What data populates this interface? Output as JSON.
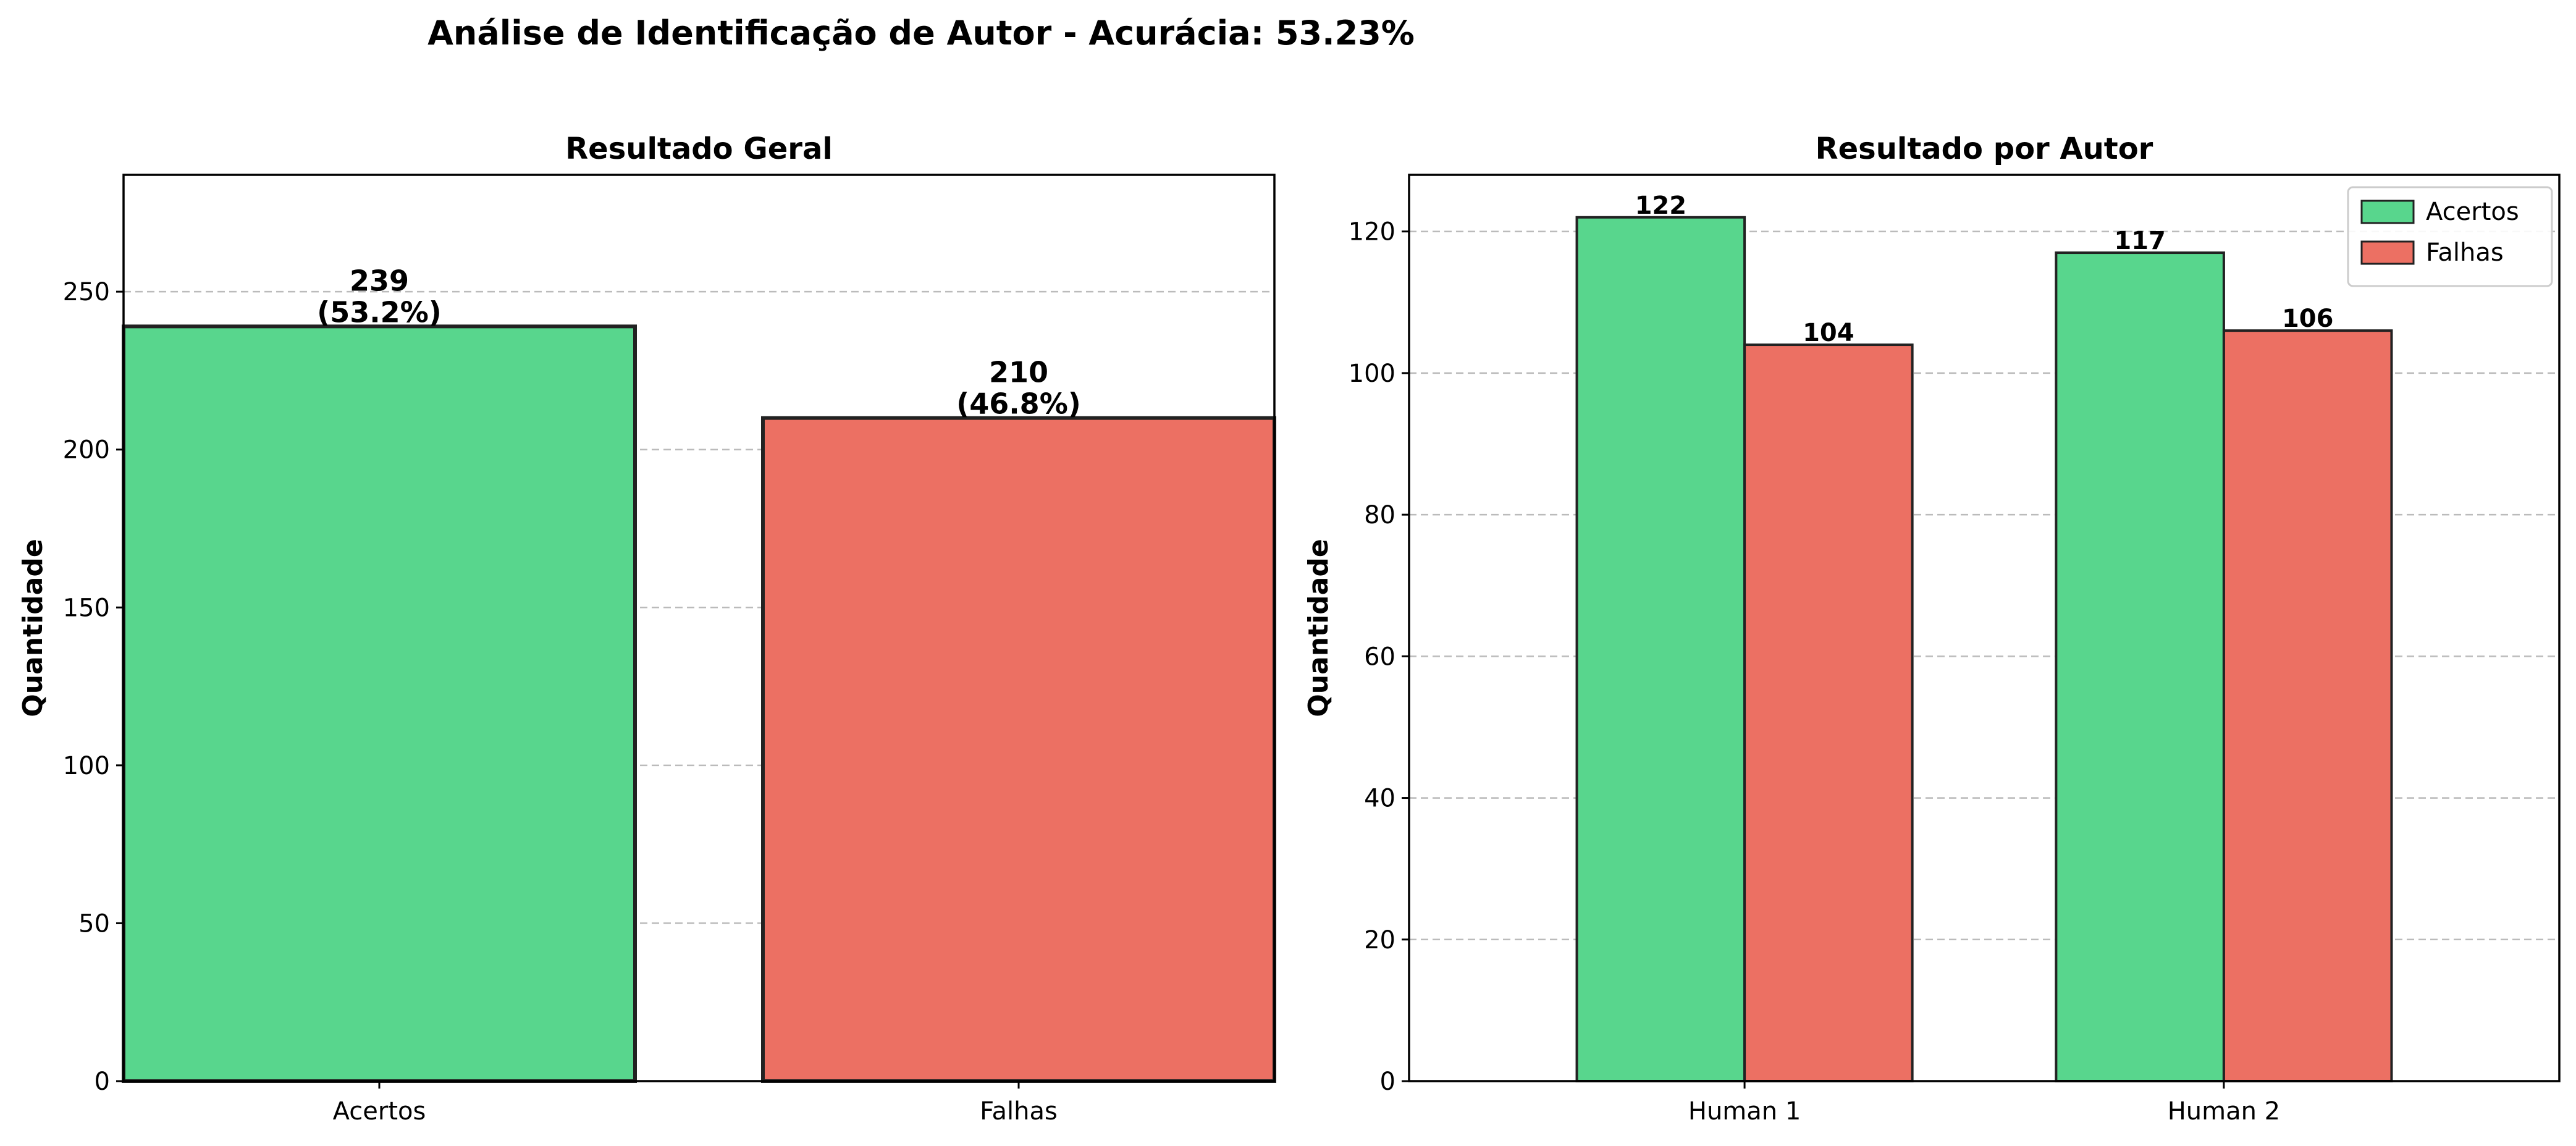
{
  "figure": {
    "title": "Análise de Identificação de Autor - Acurácia: 53.23%"
  },
  "colors": {
    "acertos": "#58d68d",
    "falhas": "#ec7063",
    "edge": "#222222",
    "grid": "#bbbbbb"
  },
  "chart_data": [
    {
      "type": "bar",
      "title": "Resultado Geral",
      "xlabel": "",
      "ylabel": "Quantidade",
      "categories": [
        "Acertos",
        "Falhas"
      ],
      "values": [
        239,
        210
      ],
      "value_labels": [
        "239\n(53.2%)",
        "210\n(46.8%)"
      ],
      "colors": [
        "#58d68d",
        "#ec7063"
      ],
      "ylim": [
        0,
        287
      ],
      "yticks": [
        0,
        50,
        100,
        150,
        200,
        250
      ],
      "grid": true,
      "grid_axis": "y",
      "legend": null
    },
    {
      "type": "bar",
      "title": "Resultado por Autor",
      "xlabel": "",
      "ylabel": "Quantidade",
      "categories": [
        "Human 1",
        "Human 2"
      ],
      "series": [
        {
          "name": "Acertos",
          "values": [
            122,
            117
          ],
          "color": "#58d68d"
        },
        {
          "name": "Falhas",
          "values": [
            104,
            106
          ],
          "color": "#ec7063"
        }
      ],
      "ylim": [
        0,
        128
      ],
      "yticks": [
        0,
        20,
        40,
        60,
        80,
        100,
        120
      ],
      "grid": true,
      "grid_axis": "y",
      "legend": "top-right"
    }
  ]
}
